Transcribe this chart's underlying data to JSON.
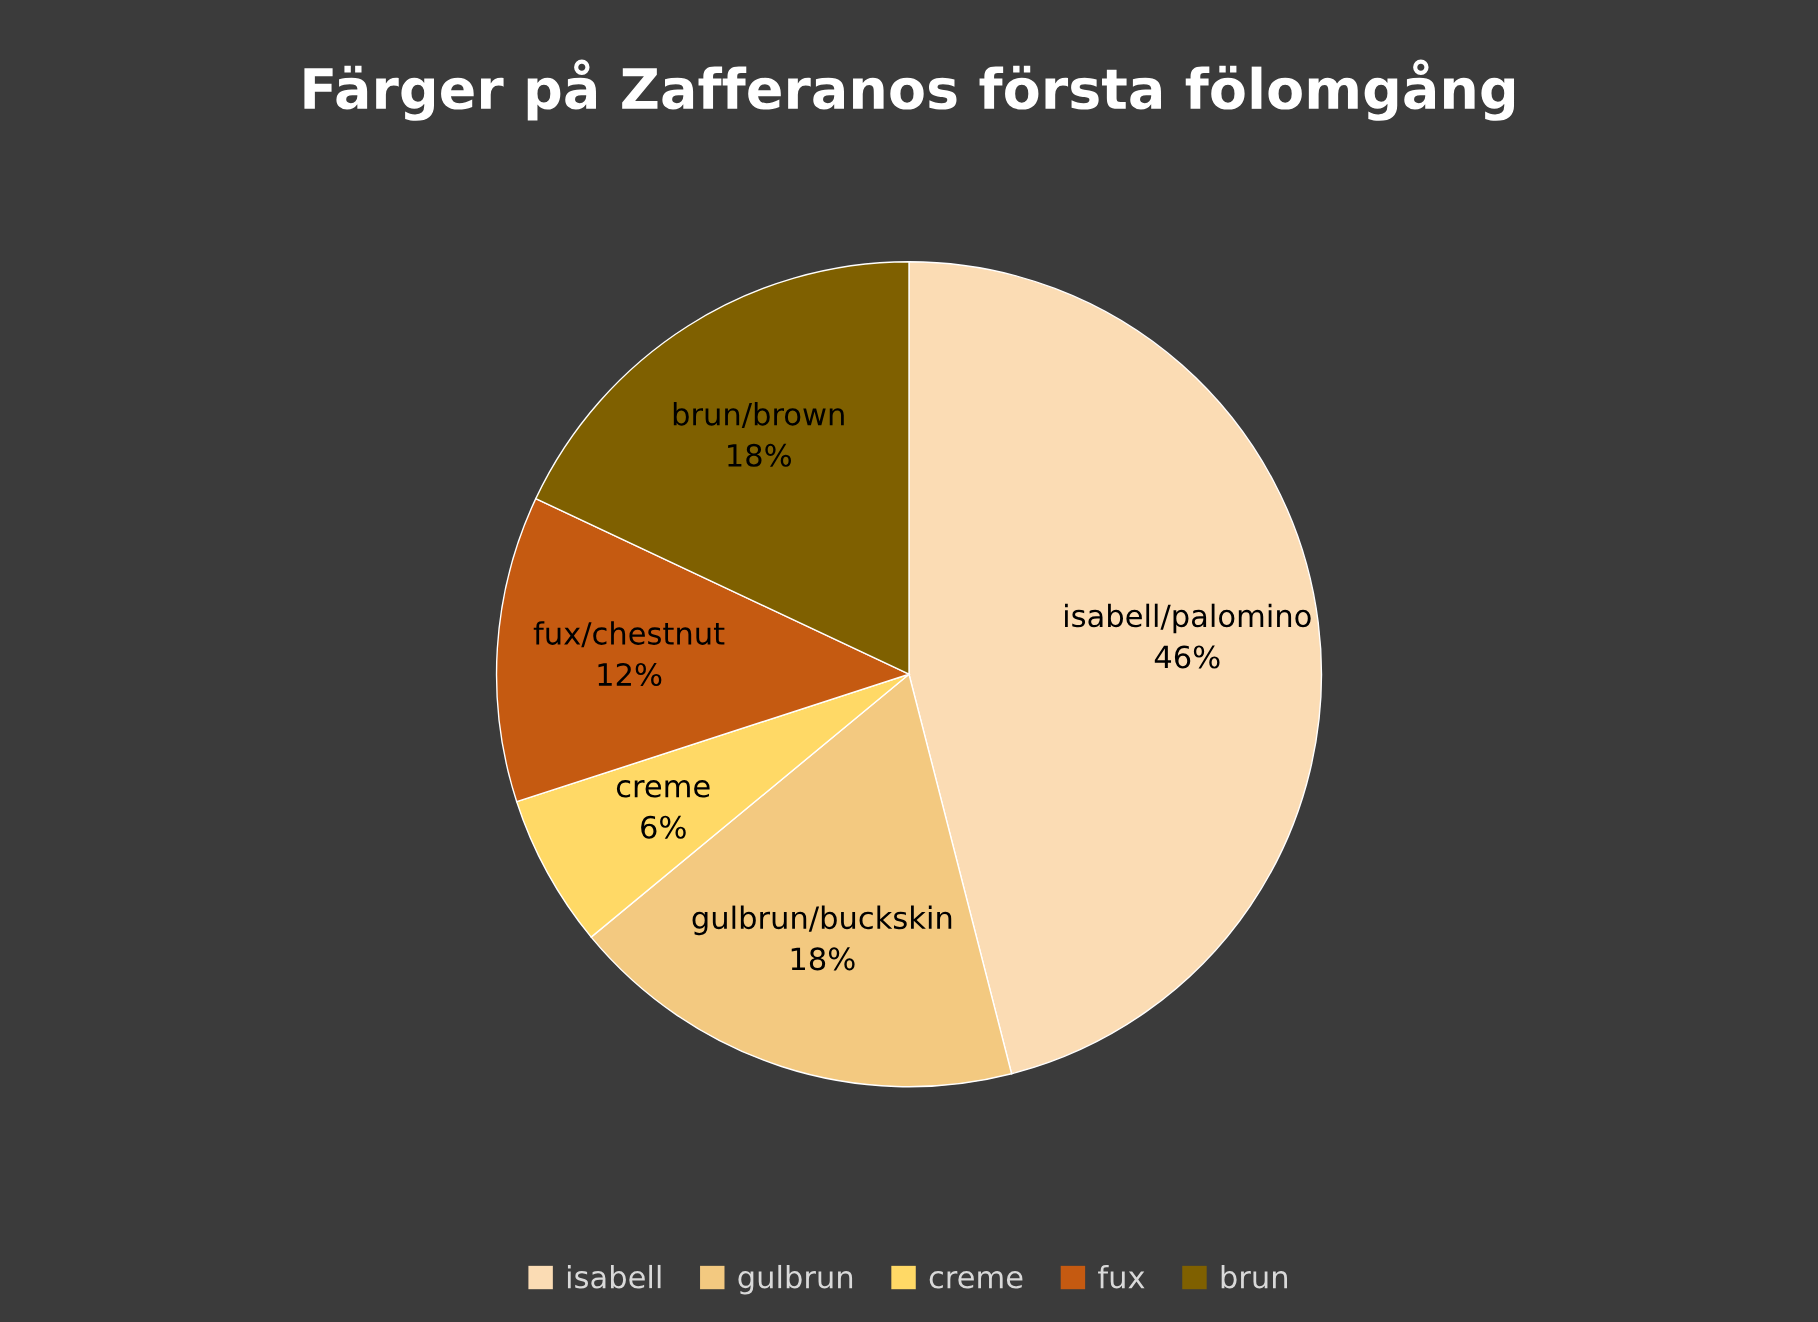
{
  "chart_data": {
    "type": "pie",
    "title": "Färger på Zafferanos första fölomgång",
    "categories": [
      "isabell",
      "gulbrun",
      "creme",
      "fux",
      "brun"
    ],
    "values": [
      46,
      18,
      6,
      12,
      18
    ],
    "colors": [
      "#fbdcb4",
      "#f3c980",
      "#ffd966",
      "#c55a11",
      "#7f6000"
    ],
    "value_labels": [
      "isabell/palomino\n46%",
      "gulbrun/buckskin\n18%",
      "creme\n6%",
      "fux/chestnut\n12%",
      "brun/brown\n18%"
    ],
    "legend": "bottom"
  }
}
